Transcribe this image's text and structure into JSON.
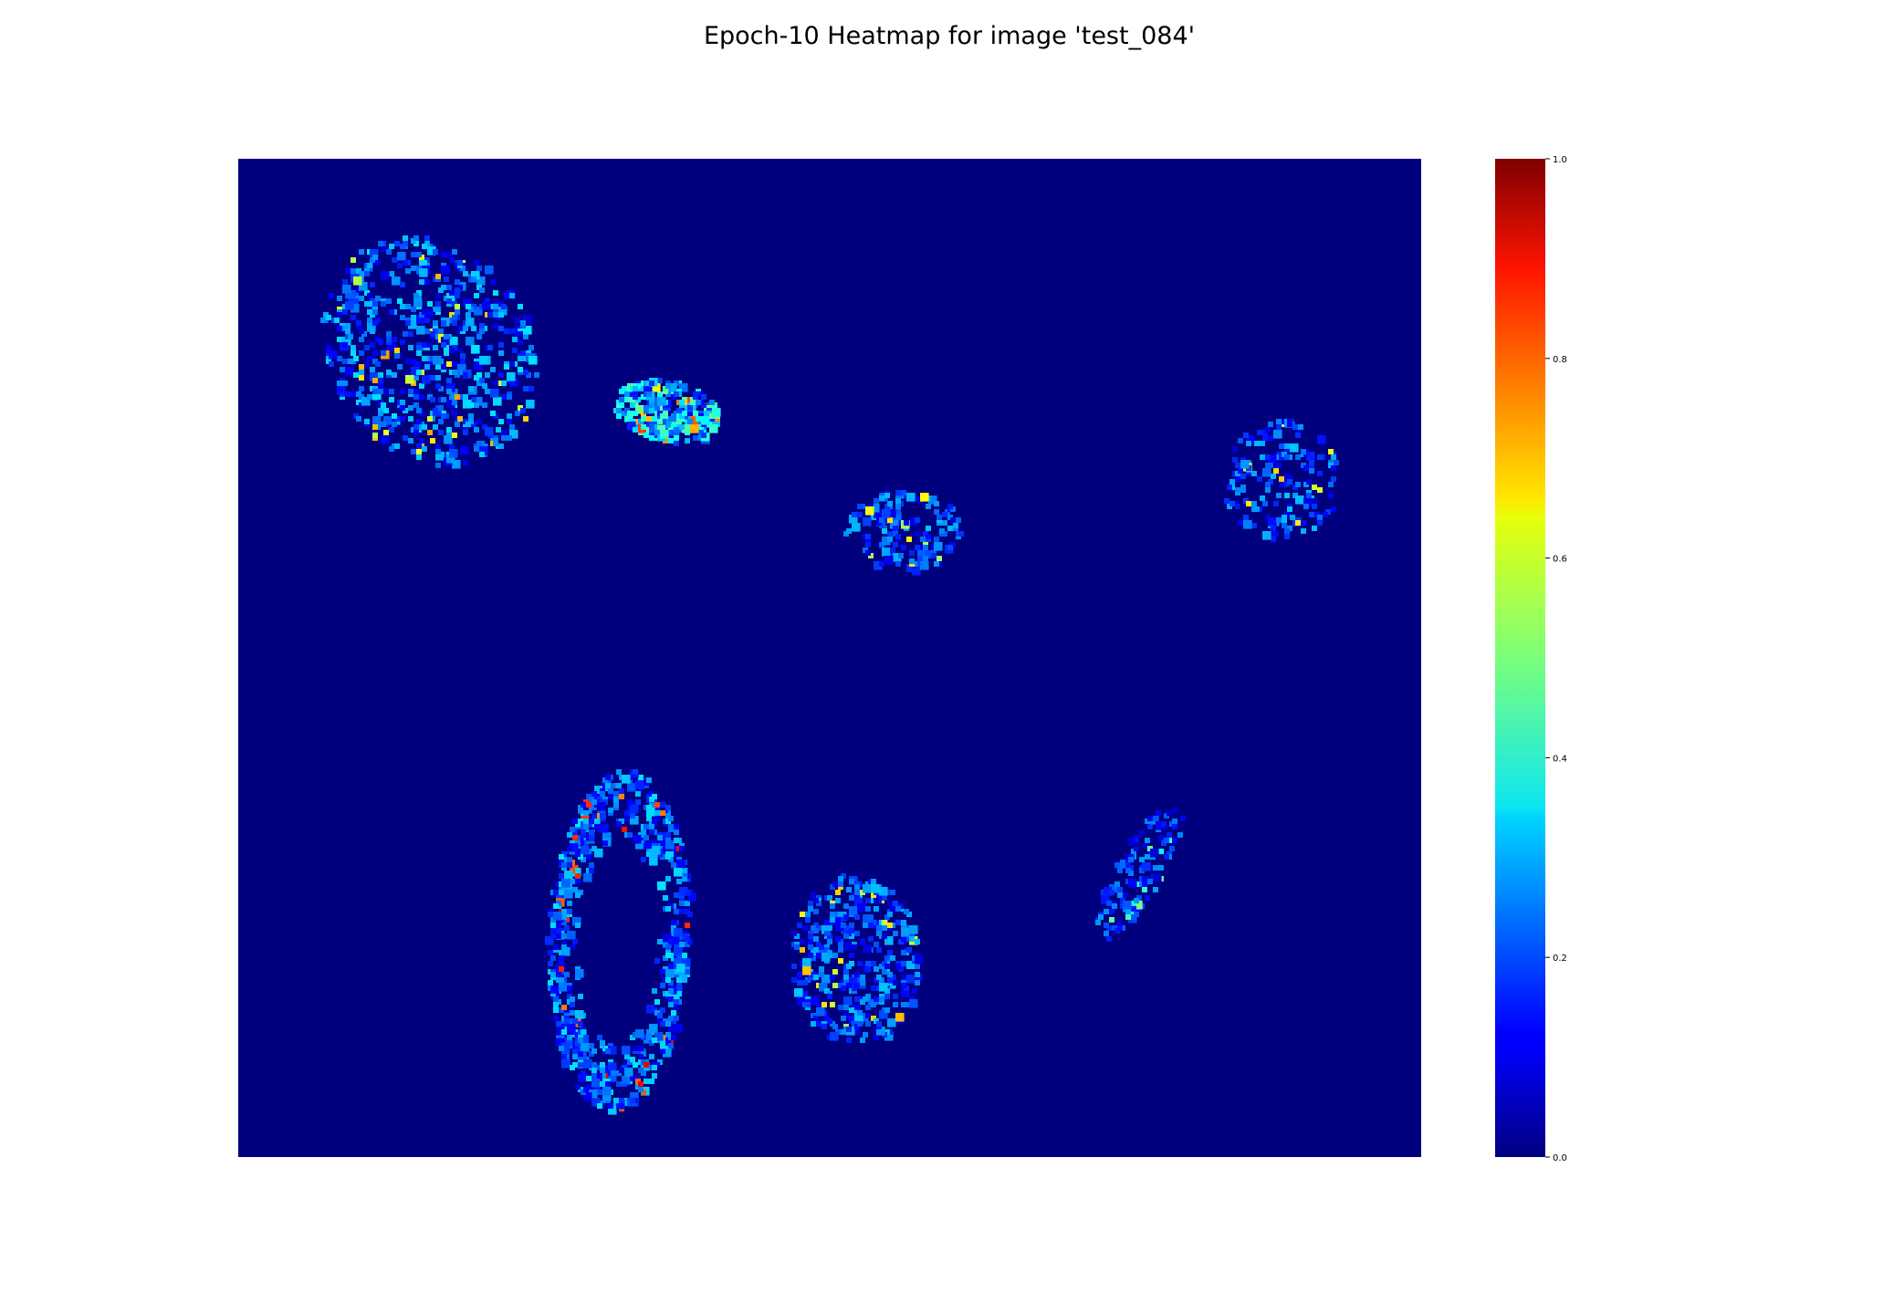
{
  "chart_data": {
    "type": "heatmap",
    "title": "Epoch-10 Heatmap for image 'test_084'",
    "xlabel": "",
    "ylabel": "",
    "axes_visible": false,
    "colormap": "jet",
    "value_range": [
      0.0,
      1.0
    ],
    "colorbar": {
      "position": "right",
      "ticks": [
        "0.0",
        "0.2",
        "0.4",
        "0.6",
        "0.8",
        "1.0"
      ],
      "tick_values": [
        0.0,
        0.2,
        0.4,
        0.6,
        0.8,
        1.0
      ]
    },
    "background_value": 0.0,
    "regions": [
      {
        "label": "upper-left crescent",
        "cx": 0.16,
        "cy": 0.19,
        "peak": 0.72,
        "mean": 0.22
      },
      {
        "label": "upper-center patch",
        "cx": 0.36,
        "cy": 0.25,
        "peak": 0.82,
        "mean": 0.3
      },
      {
        "label": "center small patch",
        "cx": 0.56,
        "cy": 0.37,
        "peak": 0.7,
        "mean": 0.2
      },
      {
        "label": "right patch",
        "cx": 0.88,
        "cy": 0.32,
        "peak": 0.68,
        "mean": 0.2
      },
      {
        "label": "lower-left ring",
        "cx": 0.32,
        "cy": 0.78,
        "peak": 0.95,
        "mean": 0.22
      },
      {
        "label": "lower-center patch",
        "cx": 0.52,
        "cy": 0.8,
        "peak": 0.7,
        "mean": 0.2
      },
      {
        "label": "lower-right sliver",
        "cx": 0.76,
        "cy": 0.71,
        "peak": 0.5,
        "mean": 0.18
      }
    ]
  }
}
